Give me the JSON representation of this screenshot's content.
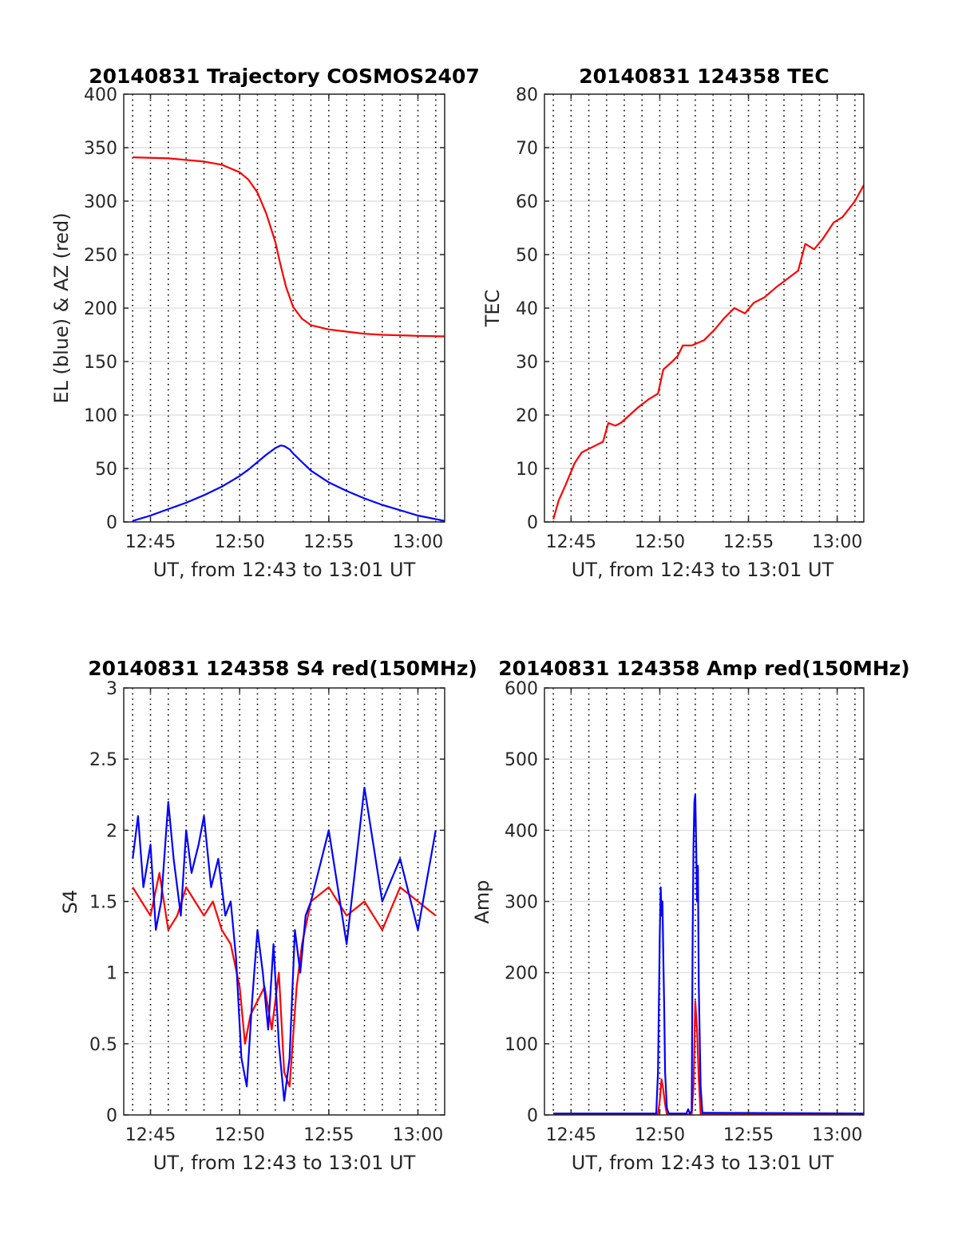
{
  "chart_data": [
    {
      "id": "trajectory",
      "type": "line",
      "title": "20140831 Trajectory COSMOS2407",
      "xlabel": "UT, from 12:43 to 13:01 UT",
      "ylabel": "EL (blue) & AZ (red)",
      "x_unit": "minutes of hour 12 (UT)",
      "xlim": [
        43.5,
        61.5
      ],
      "ylim": [
        0,
        400
      ],
      "yticks": [
        "0",
        "50",
        "100",
        "150",
        "200",
        "250",
        "300",
        "350",
        "400"
      ],
      "xticks": [
        {
          "value": 45,
          "label": "12:45"
        },
        {
          "value": 50,
          "label": "12:50"
        },
        {
          "value": 55,
          "label": "12:55"
        },
        {
          "value": 60,
          "label": "13:00"
        }
      ],
      "grid": true,
      "series": [
        {
          "color": "#ff0000",
          "x": [
            44.0,
            46.0,
            48.0,
            49.0,
            50.0,
            50.5,
            51.0,
            51.5,
            52.0,
            52.3,
            52.6,
            53.0,
            53.5,
            54.0,
            55.0,
            56.0,
            57.0,
            58.0,
            59.0,
            60.0,
            61.5
          ],
          "y": [
            341,
            340,
            337,
            334,
            327,
            320,
            308,
            288,
            262,
            240,
            220,
            201,
            190,
            184,
            180,
            178,
            176,
            175,
            174.5,
            174,
            173.5
          ]
        },
        {
          "color": "#0000ff",
          "x": [
            44.0,
            45.0,
            46.0,
            47.0,
            48.0,
            49.0,
            50.0,
            50.5,
            51.0,
            51.5,
            52.0,
            52.3,
            52.5,
            52.8,
            53.0,
            53.5,
            54.0,
            55.0,
            56.0,
            57.0,
            58.0,
            59.0,
            60.0,
            61.5
          ],
          "y": [
            1,
            6,
            12,
            18,
            25,
            33,
            43,
            49,
            56,
            63,
            69,
            71.5,
            71,
            68,
            64,
            56,
            48,
            37,
            29,
            22,
            16,
            11,
            6,
            1
          ]
        }
      ]
    },
    {
      "id": "tec",
      "type": "line",
      "title": "20140831 124358 TEC",
      "xlabel": "UT, from 12:43 to 13:01 UT",
      "ylabel": "TEC",
      "x_unit": "minutes of hour 12 (UT)",
      "xlim": [
        43.5,
        61.5
      ],
      "ylim": [
        0,
        80
      ],
      "yticks": [
        "0",
        "10",
        "20",
        "30",
        "40",
        "50",
        "60",
        "70",
        "80"
      ],
      "xticks": [
        {
          "value": 45,
          "label": "12:45"
        },
        {
          "value": 50,
          "label": "12:50"
        },
        {
          "value": 55,
          "label": "12:55"
        },
        {
          "value": 60,
          "label": "13:00"
        }
      ],
      "grid": true,
      "series": [
        {
          "color": "#ff0000",
          "x": [
            44.0,
            44.3,
            44.7,
            45.2,
            45.6,
            46.2,
            46.8,
            47.1,
            47.5,
            47.8,
            48.3,
            48.8,
            49.4,
            49.9,
            50.2,
            50.7,
            51.0,
            51.3,
            51.8,
            52.5,
            53.1,
            53.6,
            54.2,
            54.8,
            55.3,
            55.9,
            56.6,
            57.2,
            57.8,
            58.2,
            58.7,
            59.2,
            59.8,
            60.3,
            61.0,
            61.5
          ],
          "y": [
            0.5,
            4,
            7,
            11,
            13,
            14,
            15,
            18.5,
            18,
            18.5,
            20,
            21.5,
            23,
            24,
            28.5,
            30,
            31,
            33,
            33,
            34,
            36,
            38,
            40,
            39,
            41,
            42,
            44,
            45.5,
            47,
            52,
            51,
            53,
            56,
            57,
            60,
            63
          ]
        }
      ]
    },
    {
      "id": "s4",
      "type": "line",
      "title": "20140831 124358 S4 red(150MHz)",
      "xlabel": "UT, from 12:43 to 13:01 UT",
      "ylabel": "S4",
      "x_unit": "minutes of hour 12 (UT)",
      "xlim": [
        43.5,
        61.5
      ],
      "ylim": [
        0,
        3
      ],
      "yticks": [
        "0",
        "0.5",
        "1",
        "1.5",
        "2",
        "2.5",
        "3"
      ],
      "xticks": [
        {
          "value": 45,
          "label": "12:45"
        },
        {
          "value": 50,
          "label": "12:50"
        },
        {
          "value": 55,
          "label": "12:55"
        },
        {
          "value": 60,
          "label": "13:00"
        }
      ],
      "grid": true,
      "series": [
        {
          "color": "#ff0000",
          "x": [
            44.0,
            44.5,
            45.0,
            45.5,
            46.0,
            46.5,
            47.0,
            47.5,
            48.0,
            48.5,
            49.0,
            49.5,
            50.0,
            50.3,
            50.6,
            51.0,
            51.4,
            51.8,
            52.2,
            52.5,
            52.8,
            53.2,
            53.5,
            54.0,
            55.0,
            56.0,
            57.0,
            58.0,
            59.0,
            60.0,
            61.0
          ],
          "y": [
            1.6,
            1.5,
            1.4,
            1.7,
            1.3,
            1.4,
            1.6,
            1.5,
            1.4,
            1.5,
            1.3,
            1.2,
            0.9,
            0.5,
            0.7,
            0.8,
            0.9,
            0.6,
            1.0,
            0.3,
            0.2,
            0.9,
            1.2,
            1.5,
            1.6,
            1.4,
            1.5,
            1.3,
            1.6,
            1.5,
            1.4
          ]
        },
        {
          "color": "#0000ff",
          "x": [
            44.0,
            44.3,
            44.6,
            45.0,
            45.3,
            45.6,
            46.0,
            46.3,
            46.7,
            47.0,
            47.3,
            47.7,
            48.0,
            48.4,
            48.8,
            49.2,
            49.5,
            49.8,
            50.1,
            50.4,
            50.7,
            51.0,
            51.3,
            51.6,
            51.9,
            52.2,
            52.5,
            52.8,
            53.1,
            53.4,
            53.7,
            54.0,
            55.0,
            56.0,
            57.0,
            58.0,
            59.0,
            60.0,
            61.0
          ],
          "y": [
            1.8,
            2.1,
            1.6,
            1.9,
            1.3,
            1.5,
            2.2,
            1.8,
            1.4,
            2.0,
            1.7,
            1.9,
            2.1,
            1.6,
            1.8,
            1.4,
            1.5,
            1.1,
            0.4,
            0.2,
            0.8,
            1.3,
            1.0,
            0.6,
            1.2,
            0.5,
            0.1,
            0.4,
            1.3,
            1.0,
            1.4,
            1.5,
            2.0,
            1.2,
            2.3,
            1.5,
            1.8,
            1.3,
            2.0
          ]
        }
      ]
    },
    {
      "id": "amp",
      "type": "line",
      "title": "20140831 124358 Amp red(150MHz)",
      "xlabel": "UT, from 12:43 to 13:01 UT",
      "ylabel": "Amp",
      "x_unit": "minutes of hour 12 (UT)",
      "xlim": [
        43.5,
        61.5
      ],
      "ylim": [
        0,
        600
      ],
      "yticks": [
        "0",
        "100",
        "200",
        "300",
        "400",
        "500",
        "600"
      ],
      "xticks": [
        {
          "value": 45,
          "label": "12:45"
        },
        {
          "value": 50,
          "label": "12:50"
        },
        {
          "value": 55,
          "label": "12:55"
        },
        {
          "value": 60,
          "label": "13:00"
        }
      ],
      "grid": true,
      "series": [
        {
          "color": "#ff0000",
          "x": [
            44.0,
            49.9,
            50.0,
            50.1,
            50.2,
            50.3,
            50.4,
            51.8,
            51.9,
            52.0,
            52.1,
            52.2,
            52.3,
            61.5
          ],
          "y": [
            1,
            1,
            20,
            50,
            35,
            15,
            1,
            1,
            40,
            160,
            120,
            50,
            1,
            1
          ]
        },
        {
          "color": "#0000ff",
          "x": [
            44.0,
            49.8,
            49.9,
            50.0,
            50.05,
            50.1,
            50.15,
            50.2,
            50.25,
            50.3,
            50.4,
            50.5,
            51.5,
            51.6,
            51.7,
            51.8,
            51.85,
            51.9,
            51.95,
            52.0,
            52.05,
            52.1,
            52.15,
            52.2,
            52.3,
            52.4,
            61.5
          ],
          "y": [
            2,
            2,
            60,
            250,
            320,
            280,
            300,
            220,
            150,
            60,
            10,
            2,
            2,
            8,
            2,
            5,
            250,
            380,
            440,
            450,
            380,
            300,
            350,
            180,
            40,
            3,
            2
          ]
        }
      ]
    }
  ]
}
